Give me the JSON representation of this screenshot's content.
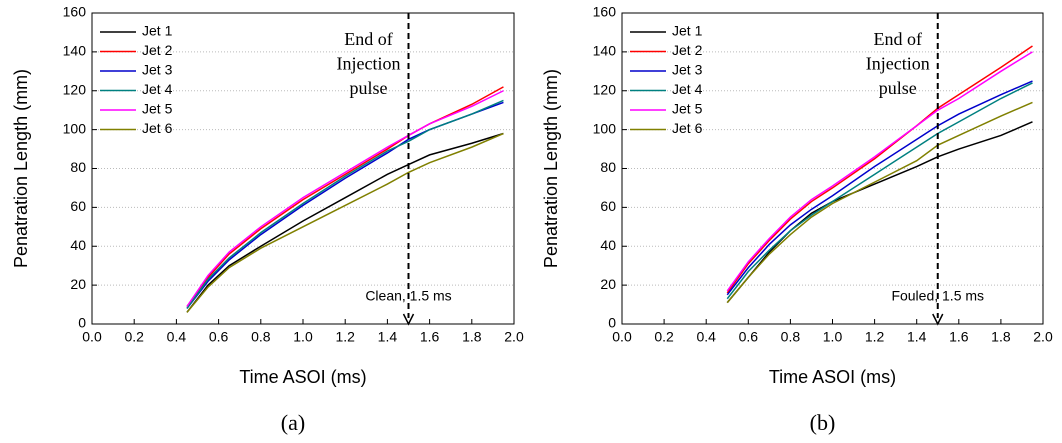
{
  "chart_data": [
    {
      "type": "line",
      "caption": "(a)",
      "xlabel": "Time ASOI (ms)",
      "ylabel": "Penatration Length (mm)",
      "x": [
        0.45,
        0.55,
        0.65,
        0.8,
        1.0,
        1.2,
        1.4,
        1.5,
        1.6,
        1.8,
        1.95
      ],
      "series": [
        {
          "name": "Jet 1",
          "color": "#000000",
          "values": [
            6,
            20,
            30,
            40,
            53,
            65,
            77,
            82,
            87,
            93,
            98
          ]
        },
        {
          "name": "Jet 2",
          "color": "#ff0000",
          "values": [
            9,
            24,
            36,
            49,
            64,
            77,
            90,
            97,
            103,
            113,
            122
          ]
        },
        {
          "name": "Jet 3",
          "color": "#0000cc",
          "values": [
            8,
            22,
            33,
            46,
            61,
            75,
            88,
            95,
            100,
            108,
            114
          ]
        },
        {
          "name": "Jet 4",
          "color": "#008080",
          "values": [
            8,
            23,
            34,
            47,
            62,
            76,
            89,
            94,
            100,
            108,
            115
          ]
        },
        {
          "name": "Jet 5",
          "color": "#ff00ff",
          "values": [
            9,
            25,
            37,
            50,
            65,
            78,
            91,
            97,
            103,
            112,
            120
          ]
        },
        {
          "name": "Jet 6",
          "color": "#808000",
          "values": [
            6,
            19,
            29,
            39,
            50,
            61,
            72,
            78,
            83,
            91,
            98
          ]
        }
      ],
      "annotation_lines": [
        "End of",
        "Injection",
        "pulse"
      ],
      "marker_x": 1.5,
      "marker_label": "Clean, 1.5 ms",
      "xlim": [
        0,
        2
      ],
      "ylim": [
        0,
        160
      ],
      "xticks": [
        {
          "value": 0,
          "label": "0.0"
        },
        {
          "value": 0.2,
          "label": "0.2"
        },
        {
          "value": 0.4,
          "label": "0.4"
        },
        {
          "value": 0.6,
          "label": "0.6"
        },
        {
          "value": 0.8,
          "label": "0.8"
        },
        {
          "value": 1,
          "label": "1.0"
        },
        {
          "value": 1.2,
          "label": "1.2"
        },
        {
          "value": 1.4,
          "label": "1.4"
        },
        {
          "value": 1.6,
          "label": "1.6"
        },
        {
          "value": 1.8,
          "label": "1.8"
        },
        {
          "value": 2,
          "label": "2.0"
        }
      ],
      "yticks": [
        0,
        20,
        40,
        60,
        80,
        100,
        120,
        140,
        160
      ],
      "grid": true,
      "legend": "upper left"
    },
    {
      "type": "line",
      "caption": "(b)",
      "xlabel": "Time ASOI (ms)",
      "ylabel": "Penatration Length (mm)",
      "x": [
        0.5,
        0.6,
        0.7,
        0.8,
        0.9,
        1.0,
        1.2,
        1.4,
        1.5,
        1.6,
        1.8,
        1.95
      ],
      "series": [
        {
          "name": "Jet 1",
          "color": "#000000",
          "values": [
            11,
            24,
            37,
            48,
            57,
            63,
            72,
            81,
            86,
            90,
            97,
            104
          ]
        },
        {
          "name": "Jet 2",
          "color": "#ff0000",
          "values": [
            16,
            31,
            43,
            54,
            63,
            70,
            85,
            102,
            111,
            118,
            132,
            143
          ]
        },
        {
          "name": "Jet 3",
          "color": "#0000cc",
          "values": [
            15,
            29,
            41,
            51,
            59,
            66,
            81,
            95,
            102,
            108,
            118,
            125
          ]
        },
        {
          "name": "Jet 4",
          "color": "#008080",
          "values": [
            13,
            27,
            38,
            48,
            56,
            63,
            77,
            91,
            98,
            104,
            116,
            124
          ]
        },
        {
          "name": "Jet 5",
          "color": "#ff00ff",
          "values": [
            17,
            32,
            44,
            55,
            64,
            71,
            86,
            102,
            110,
            116,
            130,
            140
          ]
        },
        {
          "name": "Jet 6",
          "color": "#808000",
          "values": [
            11,
            24,
            36,
            46,
            55,
            62,
            73,
            84,
            92,
            97,
            107,
            114
          ]
        }
      ],
      "annotation_lines": [
        "End of",
        "Injection",
        "pulse"
      ],
      "marker_x": 1.5,
      "marker_label": "Fouled, 1.5 ms",
      "xlim": [
        0,
        2
      ],
      "ylim": [
        0,
        160
      ],
      "xticks": [
        {
          "value": 0,
          "label": "0.0"
        },
        {
          "value": 0.2,
          "label": "0.2"
        },
        {
          "value": 0.4,
          "label": "0.4"
        },
        {
          "value": 0.6,
          "label": "0.6"
        },
        {
          "value": 0.8,
          "label": "0.8"
        },
        {
          "value": 1,
          "label": "1.0"
        },
        {
          "value": 1.2,
          "label": "1.2"
        },
        {
          "value": 1.4,
          "label": "1.4"
        },
        {
          "value": 1.6,
          "label": "1.6"
        },
        {
          "value": 1.8,
          "label": "1.8"
        },
        {
          "value": 2,
          "label": "2.0"
        }
      ],
      "yticks": [
        0,
        20,
        40,
        60,
        80,
        100,
        120,
        140,
        160
      ],
      "grid": true,
      "legend": "upper left"
    }
  ]
}
